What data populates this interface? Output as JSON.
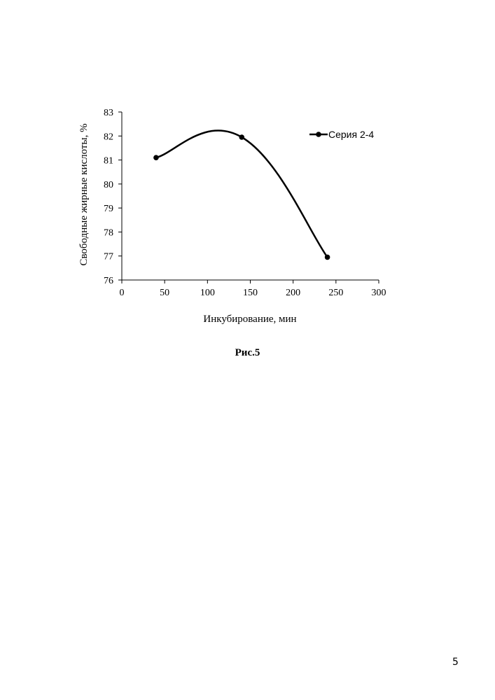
{
  "chart_data": {
    "type": "line",
    "smooth": true,
    "x_label": "Инкубирование, мин",
    "y_label": "Свободные жирные кислоты, %",
    "xlim": [
      0,
      300
    ],
    "ylim": [
      76,
      83
    ],
    "x_ticks": [
      0,
      50,
      100,
      150,
      200,
      250,
      300
    ],
    "y_ticks": [
      76,
      77,
      78,
      79,
      80,
      81,
      82,
      83
    ],
    "legend_position": "top-right",
    "series": [
      {
        "name": "Серия 2-4",
        "x": [
          40,
          140,
          240
        ],
        "y": [
          81.1,
          81.95,
          76.95
        ]
      }
    ]
  },
  "caption": "Рис.5",
  "page_number": "5"
}
